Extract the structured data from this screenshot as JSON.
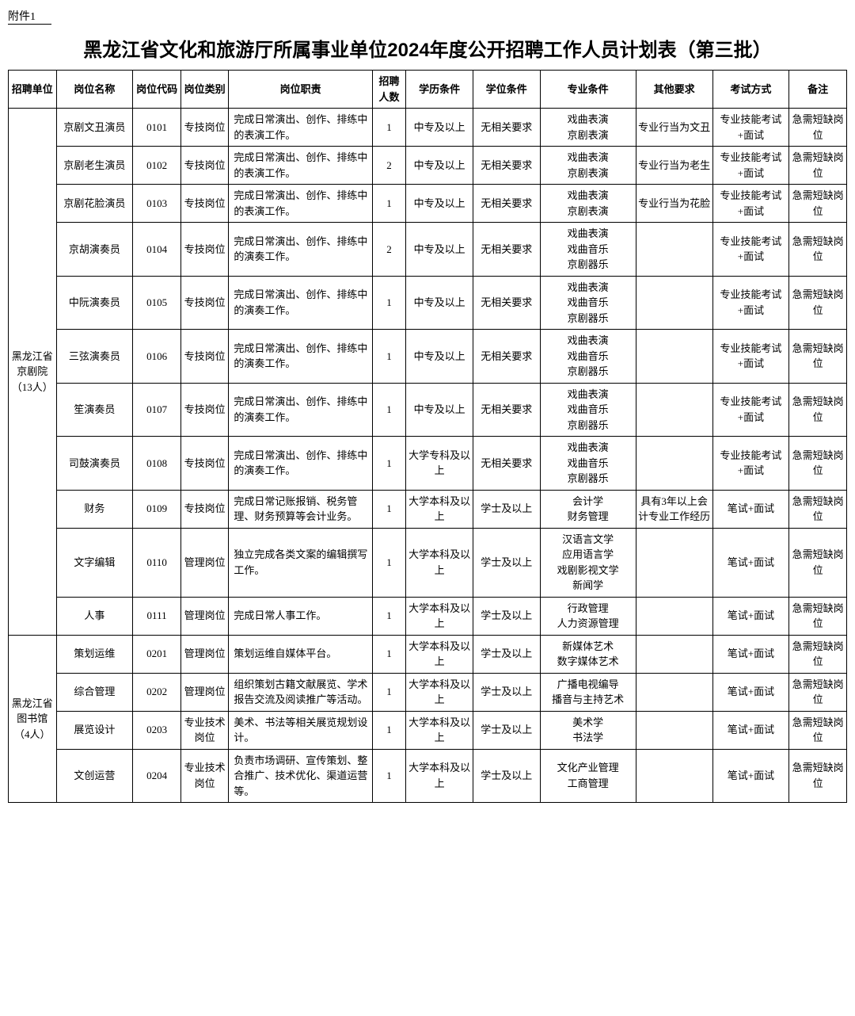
{
  "attachment_label": "附件1",
  "title": "黑龙江省文化和旅游厅所属事业单位2024年度公开招聘工作人员计划表（第三批）",
  "columns": [
    "招聘单位",
    "岗位名称",
    "岗位代码",
    "岗位类别",
    "岗位职责",
    "招聘人数",
    "学历条件",
    "学位条件",
    "专业条件",
    "其他要求",
    "考试方式",
    "备注"
  ],
  "groups": [
    {
      "unit": "黑龙江省京剧院（13人）",
      "rows": [
        {
          "name": "京剧文丑演员",
          "code": "0101",
          "type": "专技岗位",
          "duty": "完成日常演出、创作、排练中的表演工作。",
          "count": "1",
          "edu": "中专及以上",
          "degree": "无相关要求",
          "major": "戏曲表演\n京剧表演",
          "other": "专业行当为文丑",
          "exam": "专业技能考试+面试",
          "remark": "急需短缺岗位"
        },
        {
          "name": "京剧老生演员",
          "code": "0102",
          "type": "专技岗位",
          "duty": "完成日常演出、创作、排练中的表演工作。",
          "count": "2",
          "edu": "中专及以上",
          "degree": "无相关要求",
          "major": "戏曲表演\n京剧表演",
          "other": "专业行当为老生",
          "exam": "专业技能考试+面试",
          "remark": "急需短缺岗位"
        },
        {
          "name": "京剧花脸演员",
          "code": "0103",
          "type": "专技岗位",
          "duty": "完成日常演出、创作、排练中的表演工作。",
          "count": "1",
          "edu": "中专及以上",
          "degree": "无相关要求",
          "major": "戏曲表演\n京剧表演",
          "other": "专业行当为花脸",
          "exam": "专业技能考试+面试",
          "remark": "急需短缺岗位"
        },
        {
          "name": "京胡演奏员",
          "code": "0104",
          "type": "专技岗位",
          "duty": "完成日常演出、创作、排练中的演奏工作。",
          "count": "2",
          "edu": "中专及以上",
          "degree": "无相关要求",
          "major": "戏曲表演\n戏曲音乐\n京剧器乐",
          "other": "",
          "exam": "专业技能考试+面试",
          "remark": "急需短缺岗位"
        },
        {
          "name": "中阮演奏员",
          "code": "0105",
          "type": "专技岗位",
          "duty": "完成日常演出、创作、排练中的演奏工作。",
          "count": "1",
          "edu": "中专及以上",
          "degree": "无相关要求",
          "major": "戏曲表演\n戏曲音乐\n京剧器乐",
          "other": "",
          "exam": "专业技能考试+面试",
          "remark": "急需短缺岗位"
        },
        {
          "name": "三弦演奏员",
          "code": "0106",
          "type": "专技岗位",
          "duty": "完成日常演出、创作、排练中的演奏工作。",
          "count": "1",
          "edu": "中专及以上",
          "degree": "无相关要求",
          "major": "戏曲表演\n戏曲音乐\n京剧器乐",
          "other": "",
          "exam": "专业技能考试+面试",
          "remark": "急需短缺岗位"
        },
        {
          "name": "笙演奏员",
          "code": "0107",
          "type": "专技岗位",
          "duty": "完成日常演出、创作、排练中的演奏工作。",
          "count": "1",
          "edu": "中专及以上",
          "degree": "无相关要求",
          "major": "戏曲表演\n戏曲音乐\n京剧器乐",
          "other": "",
          "exam": "专业技能考试+面试",
          "remark": "急需短缺岗位"
        },
        {
          "name": "司鼓演奏员",
          "code": "0108",
          "type": "专技岗位",
          "duty": "完成日常演出、创作、排练中的演奏工作。",
          "count": "1",
          "edu": "大学专科及以上",
          "degree": "无相关要求",
          "major": "戏曲表演\n戏曲音乐\n京剧器乐",
          "other": "",
          "exam": "专业技能考试+面试",
          "remark": "急需短缺岗位"
        },
        {
          "name": "财务",
          "code": "0109",
          "type": "专技岗位",
          "duty": "完成日常记账报销、税务管理、财务预算等会计业务。",
          "count": "1",
          "edu": "大学本科及以上",
          "degree": "学士及以上",
          "major": "会计学\n财务管理",
          "other": "具有3年以上会计专业工作经历",
          "exam": "笔试+面试",
          "remark": "急需短缺岗位"
        },
        {
          "name": "文字编辑",
          "code": "0110",
          "type": "管理岗位",
          "duty": "独立完成各类文案的编辑撰写工作。",
          "count": "1",
          "edu": "大学本科及以上",
          "degree": "学士及以上",
          "major": "汉语言文学\n应用语言学\n戏剧影视文学\n新闻学",
          "other": "",
          "exam": "笔试+面试",
          "remark": "急需短缺岗位"
        },
        {
          "name": "人事",
          "code": "0111",
          "type": "管理岗位",
          "duty": "完成日常人事工作。",
          "count": "1",
          "edu": "大学本科及以上",
          "degree": "学士及以上",
          "major": "行政管理\n人力资源管理",
          "other": "",
          "exam": "笔试+面试",
          "remark": "急需短缺岗位"
        }
      ]
    },
    {
      "unit": "黑龙江省图书馆（4人）",
      "rows": [
        {
          "name": "策划运维",
          "code": "0201",
          "type": "管理岗位",
          "duty": "策划运维自媒体平台。",
          "count": "1",
          "edu": "大学本科及以上",
          "degree": "学士及以上",
          "major": "新媒体艺术\n数字媒体艺术",
          "other": "",
          "exam": "笔试+面试",
          "remark": "急需短缺岗位"
        },
        {
          "name": "综合管理",
          "code": "0202",
          "type": "管理岗位",
          "duty": "组织策划古籍文献展览、学术报告交流及阅读推广等活动。",
          "count": "1",
          "edu": "大学本科及以上",
          "degree": "学士及以上",
          "major": "广播电视编导\n播音与主持艺术",
          "other": "",
          "exam": "笔试+面试",
          "remark": "急需短缺岗位"
        },
        {
          "name": "展览设计",
          "code": "0203",
          "type": "专业技术岗位",
          "duty": "美术、书法等相关展览规划设计。",
          "count": "1",
          "edu": "大学本科及以上",
          "degree": "学士及以上",
          "major": "美术学\n书法学",
          "other": "",
          "exam": "笔试+面试",
          "remark": "急需短缺岗位"
        },
        {
          "name": "文创运营",
          "code": "0204",
          "type": "专业技术岗位",
          "duty": "负责市场调研、宣传策划、整合推广、技术优化、渠道运营等。",
          "count": "1",
          "edu": "大学本科及以上",
          "degree": "学士及以上",
          "major": "文化产业管理\n工商管理",
          "other": "",
          "exam": "笔试+面试",
          "remark": "急需短缺岗位"
        }
      ]
    }
  ]
}
